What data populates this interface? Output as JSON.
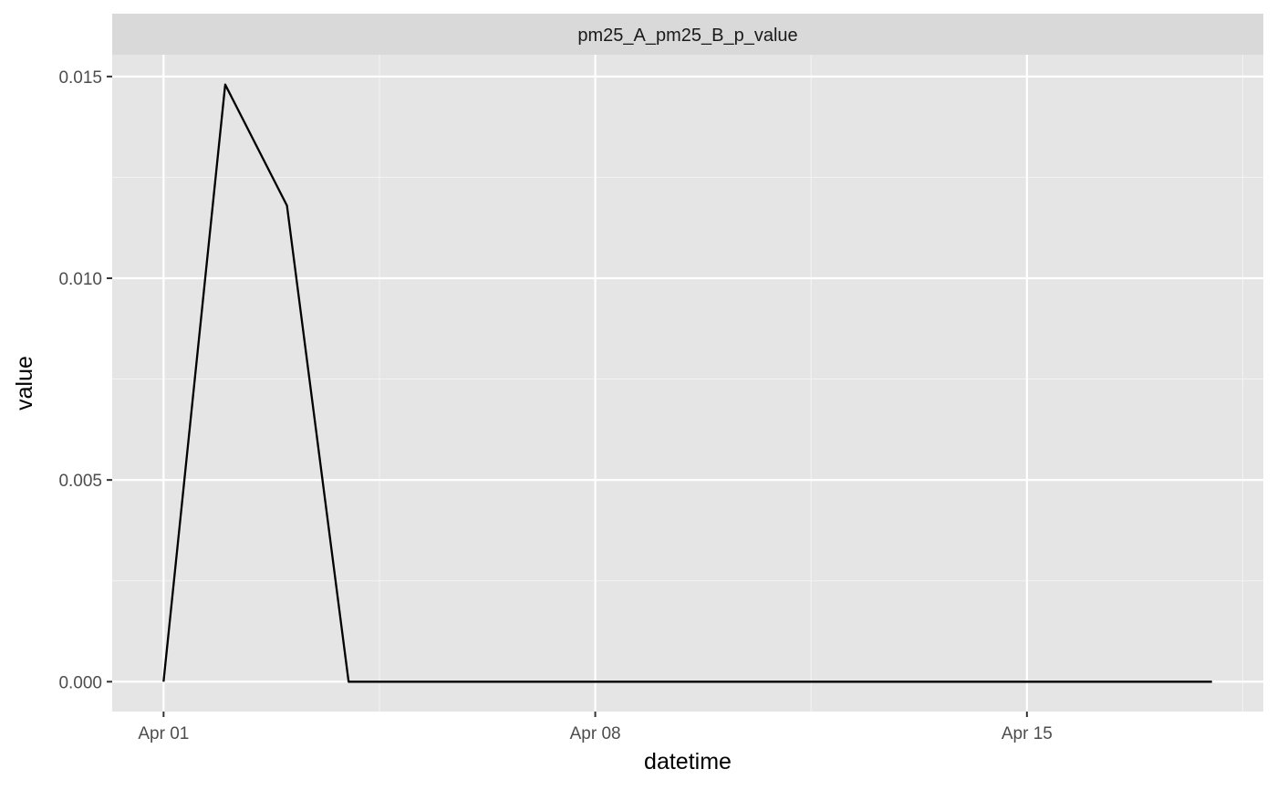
{
  "chart_data": {
    "type": "line",
    "facet_label": "pm25_A_pm25_B_p_value",
    "xlabel": "datetime",
    "ylabel": "value",
    "x_ticks": [
      {
        "date": "2023-04-01",
        "label": "Apr 01"
      },
      {
        "date": "2023-04-08",
        "label": "Apr 08"
      },
      {
        "date": "2023-04-15",
        "label": "Apr 15"
      }
    ],
    "y_ticks": [
      {
        "value": 0.0,
        "label": "0.000"
      },
      {
        "value": 0.005,
        "label": "0.005"
      },
      {
        "value": 0.01,
        "label": "0.010"
      },
      {
        "value": 0.015,
        "label": "0.015"
      }
    ],
    "xlim": [
      "2023-03-31T04:00",
      "2023-04-18T20:00"
    ],
    "ylim": [
      -0.00074,
      0.01554
    ],
    "grid": true,
    "legend": "none",
    "series": [
      {
        "color": "#000000",
        "points": [
          {
            "x": "2023-04-01",
            "y": 0.0
          },
          {
            "x": "2023-04-02",
            "y": 0.0148
          },
          {
            "x": "2023-04-03",
            "y": 0.0118
          },
          {
            "x": "2023-04-04",
            "y": 0.0
          },
          {
            "x": "2023-04-05",
            "y": 0.0
          },
          {
            "x": "2023-04-06",
            "y": 0.0
          },
          {
            "x": "2023-04-07",
            "y": 0.0
          },
          {
            "x": "2023-04-08",
            "y": 0.0
          },
          {
            "x": "2023-04-09",
            "y": 0.0
          },
          {
            "x": "2023-04-10",
            "y": 0.0
          },
          {
            "x": "2023-04-11",
            "y": 0.0
          },
          {
            "x": "2023-04-12",
            "y": 0.0
          },
          {
            "x": "2023-04-13",
            "y": 0.0
          },
          {
            "x": "2023-04-14",
            "y": 0.0
          },
          {
            "x": "2023-04-15",
            "y": 0.0
          },
          {
            "x": "2023-04-16",
            "y": 0.0
          },
          {
            "x": "2023-04-17",
            "y": 0.0
          },
          {
            "x": "2023-04-18",
            "y": 0.0
          }
        ]
      }
    ],
    "colors": {
      "panel_background": "#e5e5e5",
      "strip_background": "#d9d9d9",
      "grid_major": "#ffffff",
      "grid_minor": "#f2f2f2",
      "tick_mark": "#333333"
    }
  }
}
